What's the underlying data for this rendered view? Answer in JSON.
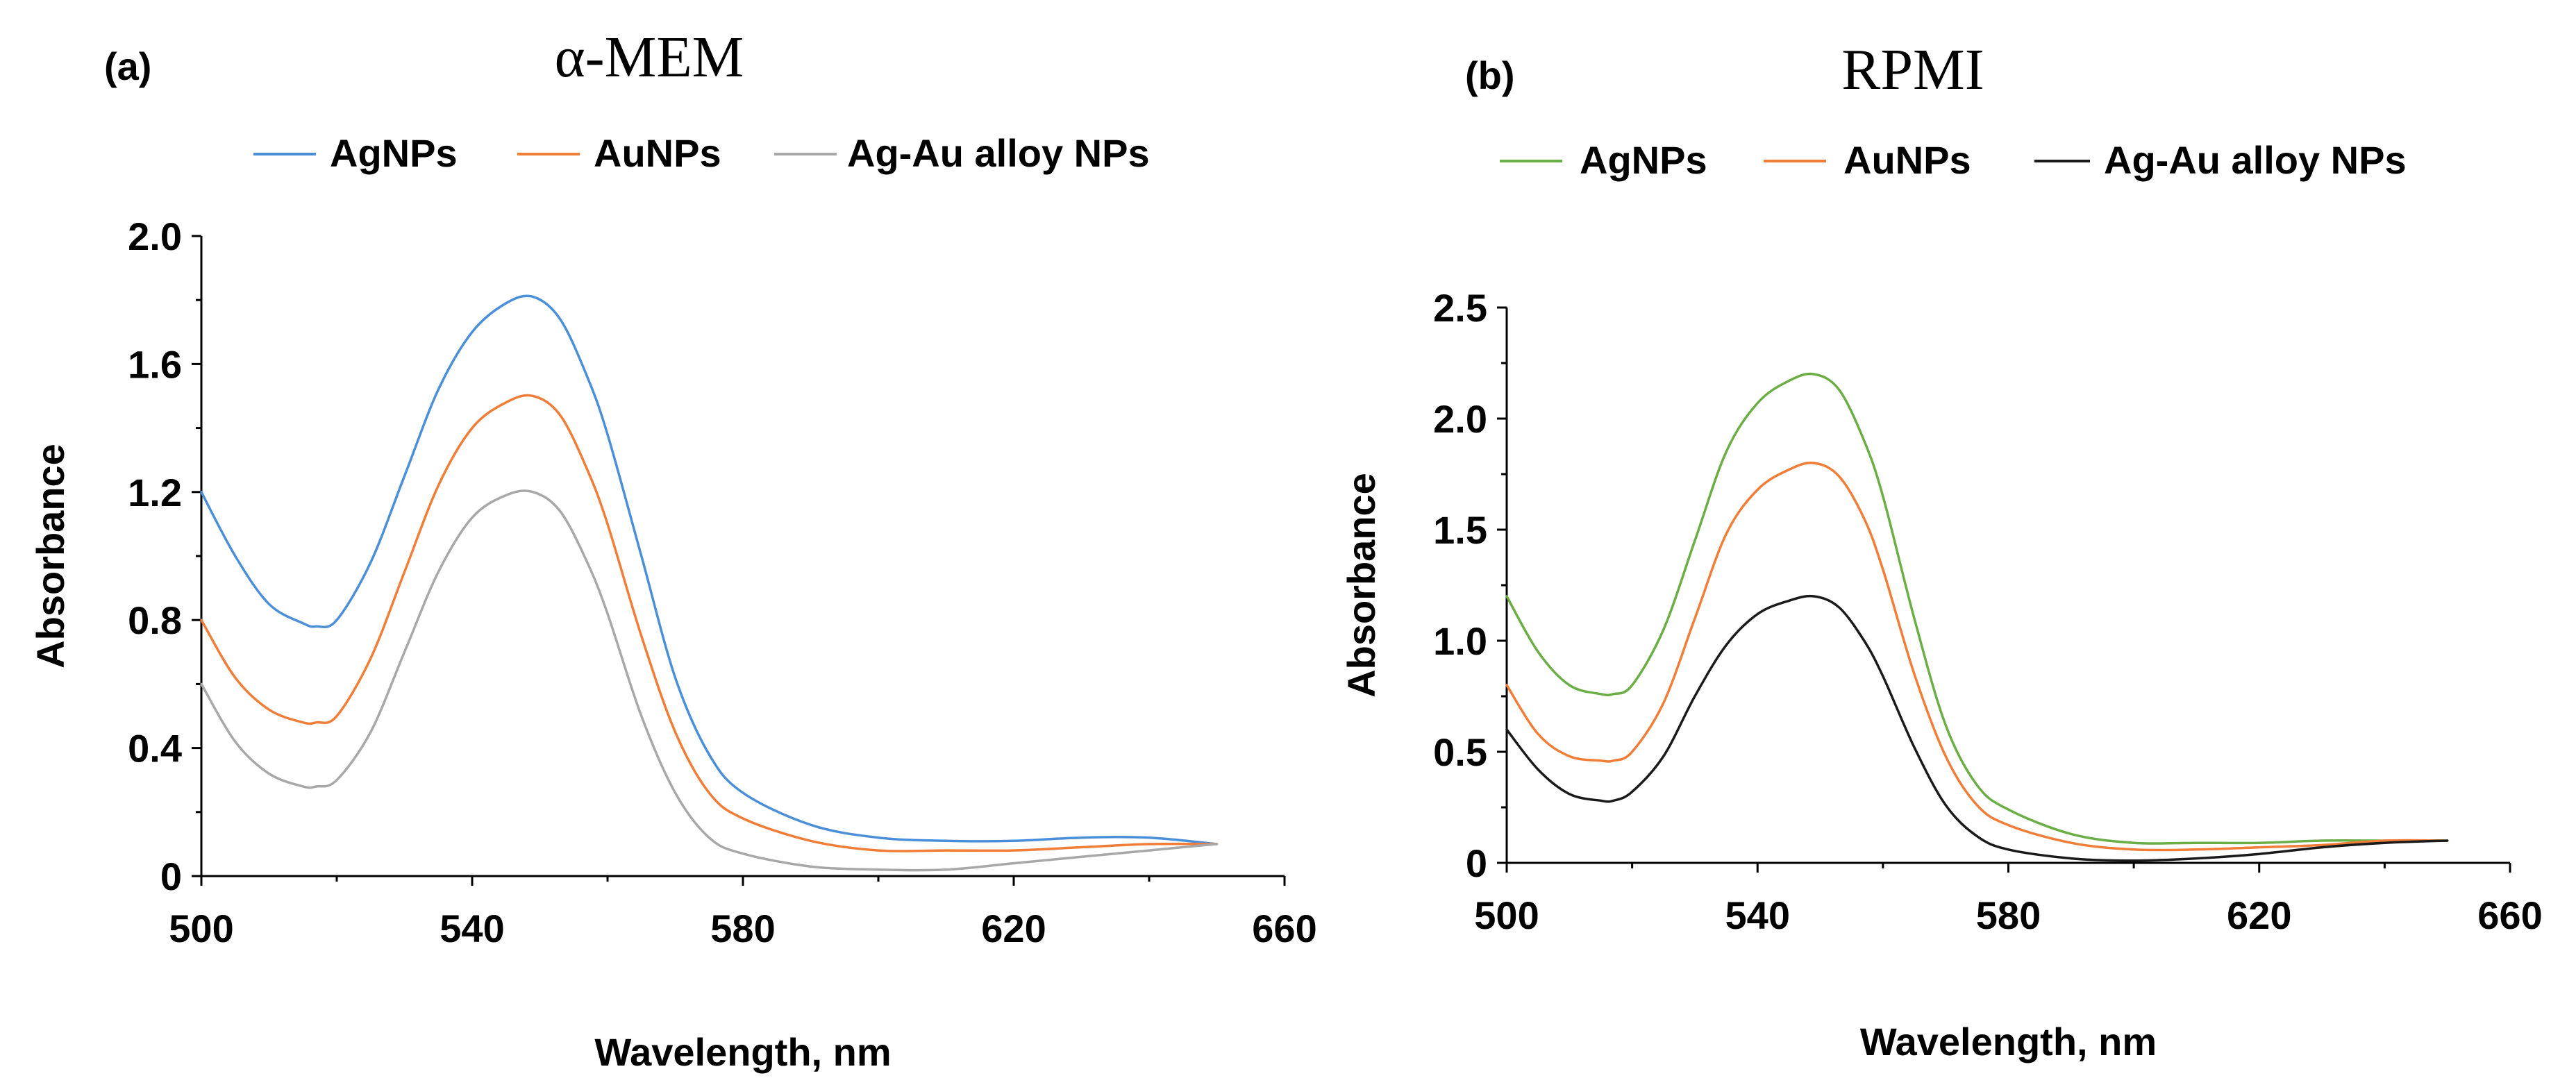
{
  "chart_data": [
    {
      "type": "line",
      "panel_label": "(a)",
      "title": "α-MEM",
      "xlabel": "Wavelength, nm",
      "ylabel": "Absorbance",
      "xlim": [
        500,
        660
      ],
      "ylim": [
        0,
        2.0
      ],
      "xticks": [
        500,
        540,
        580,
        620,
        660
      ],
      "xtick_labels": [
        "500",
        "540",
        "580",
        "620",
        "660"
      ],
      "yticks": [
        0,
        0.4,
        0.8,
        1.2,
        1.6,
        2.0
      ],
      "ytick_labels": [
        "0",
        "0.4",
        "0.8",
        "1.2",
        "1.6",
        "2.0"
      ],
      "grid": false,
      "legend_position": "top",
      "series": [
        {
          "name": "AgNPs",
          "color": "#4a8fd8",
          "x": [
            500,
            505,
            510,
            515,
            517,
            520,
            525,
            530,
            535,
            540,
            545,
            549,
            553,
            557,
            560,
            565,
            570,
            575,
            580,
            590,
            600,
            610,
            620,
            630,
            640,
            650
          ],
          "y": [
            1.2,
            1.0,
            0.85,
            0.79,
            0.78,
            0.8,
            0.98,
            1.25,
            1.52,
            1.7,
            1.79,
            1.81,
            1.74,
            1.56,
            1.38,
            1.0,
            0.62,
            0.38,
            0.26,
            0.16,
            0.12,
            0.11,
            0.11,
            0.12,
            0.12,
            0.1
          ]
        },
        {
          "name": "AuNPs",
          "color": "#f07d38",
          "x": [
            500,
            505,
            510,
            515,
            517,
            520,
            525,
            530,
            535,
            540,
            545,
            549,
            553,
            557,
            560,
            565,
            570,
            575,
            580,
            590,
            600,
            610,
            620,
            630,
            640,
            650
          ],
          "y": [
            0.8,
            0.62,
            0.52,
            0.48,
            0.48,
            0.5,
            0.68,
            0.95,
            1.22,
            1.4,
            1.48,
            1.5,
            1.44,
            1.27,
            1.1,
            0.75,
            0.45,
            0.26,
            0.18,
            0.11,
            0.08,
            0.08,
            0.08,
            0.09,
            0.1,
            0.1
          ]
        },
        {
          "name": "Ag-Au alloy NPs",
          "color": "#a8a8a8",
          "x": [
            500,
            505,
            510,
            515,
            517,
            520,
            525,
            530,
            535,
            540,
            545,
            549,
            553,
            557,
            560,
            565,
            570,
            575,
            580,
            590,
            600,
            610,
            620,
            630,
            640,
            650
          ],
          "y": [
            0.6,
            0.42,
            0.32,
            0.28,
            0.28,
            0.3,
            0.45,
            0.7,
            0.95,
            1.12,
            1.19,
            1.2,
            1.14,
            0.98,
            0.82,
            0.5,
            0.26,
            0.12,
            0.07,
            0.03,
            0.02,
            0.02,
            0.04,
            0.06,
            0.08,
            0.1
          ]
        }
      ]
    },
    {
      "type": "line",
      "panel_label": "(b)",
      "title": "RPMI",
      "xlabel": "Wavelength, nm",
      "ylabel": "Absorbance",
      "xlim": [
        500,
        660
      ],
      "ylim": [
        0,
        2.5
      ],
      "xticks": [
        500,
        540,
        580,
        620,
        660
      ],
      "xtick_labels": [
        "500",
        "540",
        "580",
        "620",
        "660"
      ],
      "yticks": [
        0,
        0.5,
        1.0,
        1.5,
        2.0,
        2.5
      ],
      "ytick_labels": [
        "0",
        "0.5",
        "1.0",
        "1.5",
        "2.0",
        "2.5"
      ],
      "grid": false,
      "legend_position": "top",
      "series": [
        {
          "name": "AgNPs",
          "color": "#6aae45",
          "x": [
            500,
            505,
            510,
            515,
            517,
            520,
            525,
            530,
            535,
            540,
            545,
            549,
            553,
            557,
            560,
            565,
            570,
            575,
            580,
            590,
            600,
            610,
            620,
            630,
            640,
            650
          ],
          "y": [
            1.2,
            0.95,
            0.8,
            0.76,
            0.76,
            0.8,
            1.05,
            1.45,
            1.85,
            2.07,
            2.17,
            2.2,
            2.13,
            1.9,
            1.65,
            1.1,
            0.62,
            0.35,
            0.24,
            0.13,
            0.09,
            0.09,
            0.09,
            0.1,
            0.1,
            0.1
          ]
        },
        {
          "name": "AuNPs",
          "color": "#f07d38",
          "x": [
            500,
            505,
            510,
            515,
            517,
            520,
            525,
            530,
            535,
            540,
            545,
            549,
            553,
            557,
            560,
            565,
            570,
            575,
            580,
            590,
            600,
            610,
            620,
            630,
            640,
            650
          ],
          "y": [
            0.8,
            0.58,
            0.48,
            0.46,
            0.46,
            0.5,
            0.72,
            1.1,
            1.48,
            1.68,
            1.77,
            1.8,
            1.74,
            1.55,
            1.32,
            0.85,
            0.48,
            0.26,
            0.17,
            0.09,
            0.06,
            0.06,
            0.07,
            0.08,
            0.1,
            0.1
          ]
        },
        {
          "name": "Ag-Au alloy NPs",
          "color": "#1a1a1a",
          "x": [
            500,
            505,
            510,
            515,
            517,
            520,
            525,
            530,
            535,
            540,
            545,
            549,
            553,
            557,
            560,
            565,
            570,
            575,
            580,
            590,
            600,
            610,
            620,
            630,
            640,
            650
          ],
          "y": [
            0.6,
            0.42,
            0.31,
            0.28,
            0.28,
            0.32,
            0.48,
            0.75,
            0.98,
            1.12,
            1.18,
            1.2,
            1.15,
            1.0,
            0.84,
            0.52,
            0.26,
            0.12,
            0.06,
            0.02,
            0.01,
            0.02,
            0.04,
            0.07,
            0.09,
            0.1
          ]
        }
      ]
    }
  ]
}
